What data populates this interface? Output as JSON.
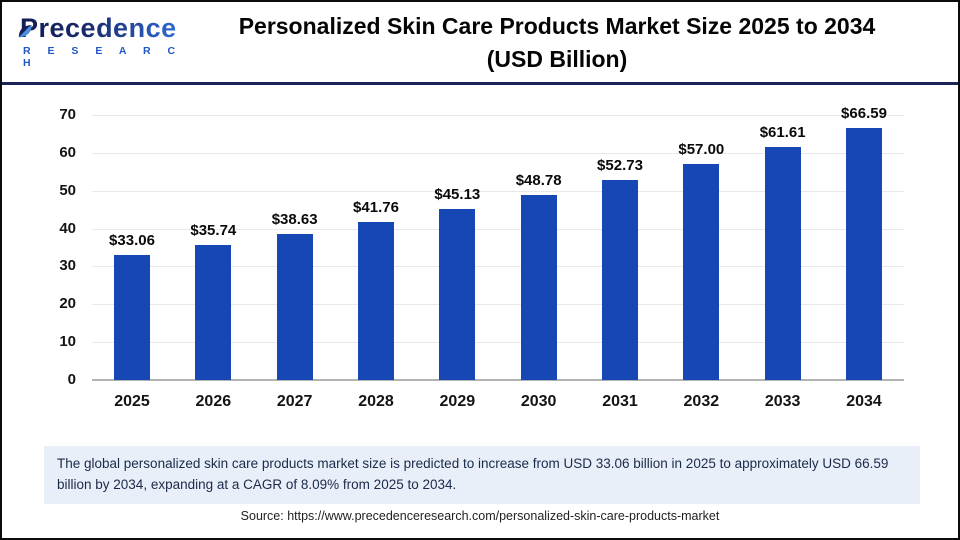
{
  "header": {
    "brand": "Precedence",
    "brand_sub": "R E S E A R C H",
    "title_line1": "Personalized Skin Care Products Market Size 2025 to 2034",
    "title_line2": "(USD Billion)"
  },
  "chart_data": {
    "type": "bar",
    "title": "Personalized Skin Care Products Market Size 2025 to 2034 (USD Billion)",
    "categories": [
      "2025",
      "2026",
      "2027",
      "2028",
      "2029",
      "2030",
      "2031",
      "2032",
      "2033",
      "2034"
    ],
    "values": [
      33.06,
      35.74,
      38.63,
      41.76,
      45.13,
      48.78,
      52.73,
      57.0,
      61.61,
      66.59
    ],
    "value_prefix": "$",
    "xlabel": "",
    "ylabel": "",
    "ylim": [
      0,
      70
    ],
    "ytick_step": 10,
    "grid": true,
    "legend_position": "none",
    "bar_color": "#1647b5",
    "gridline_color": "#e9e9e9",
    "axis_line_color": "#b2b2b2"
  },
  "note": {
    "text": "The global personalized skin care products market size is predicted to increase from USD 33.06 billion in 2025 to approximately USD 66.59 billion by 2034, expanding at a CAGR of 8.09% from 2025 to 2034."
  },
  "source": {
    "text": "Source: https://www.precedenceresearch.com/personalized-skin-care-products-market"
  }
}
